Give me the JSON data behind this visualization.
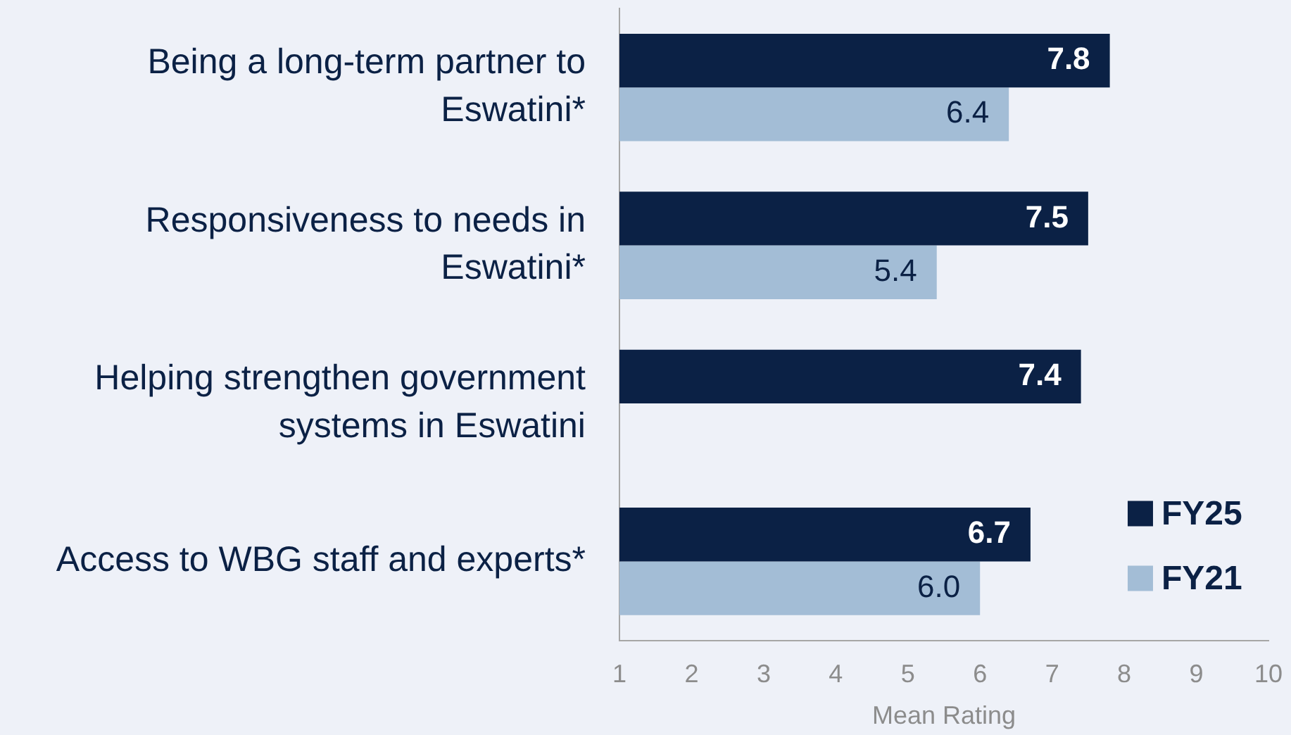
{
  "chart_data": {
    "type": "bar",
    "orientation": "horizontal",
    "xlabel": "Mean Rating",
    "categories": [
      "Being a long-term partner to Eswatini*",
      "Responsiveness to needs in Eswatini*",
      "Helping strengthen government systems in Eswatini",
      "Access to WBG staff and experts*"
    ],
    "series": [
      {
        "name": "FY25",
        "color": "#0b2145",
        "values": [
          7.8,
          7.5,
          7.4,
          6.7
        ],
        "value_labels": [
          "7.8",
          "7.5",
          "7.4",
          "6.7"
        ]
      },
      {
        "name": "FY21",
        "color": "#a3bdd6",
        "values": [
          6.4,
          5.4,
          null,
          6.0
        ],
        "value_labels": [
          "6.4",
          "5.4",
          null,
          "6.0"
        ]
      }
    ],
    "xlim": [
      1,
      10
    ],
    "xticks": [
      1,
      2,
      3,
      4,
      5,
      6,
      7,
      8,
      9,
      10
    ],
    "grid": false,
    "legend": "bottom right"
  }
}
